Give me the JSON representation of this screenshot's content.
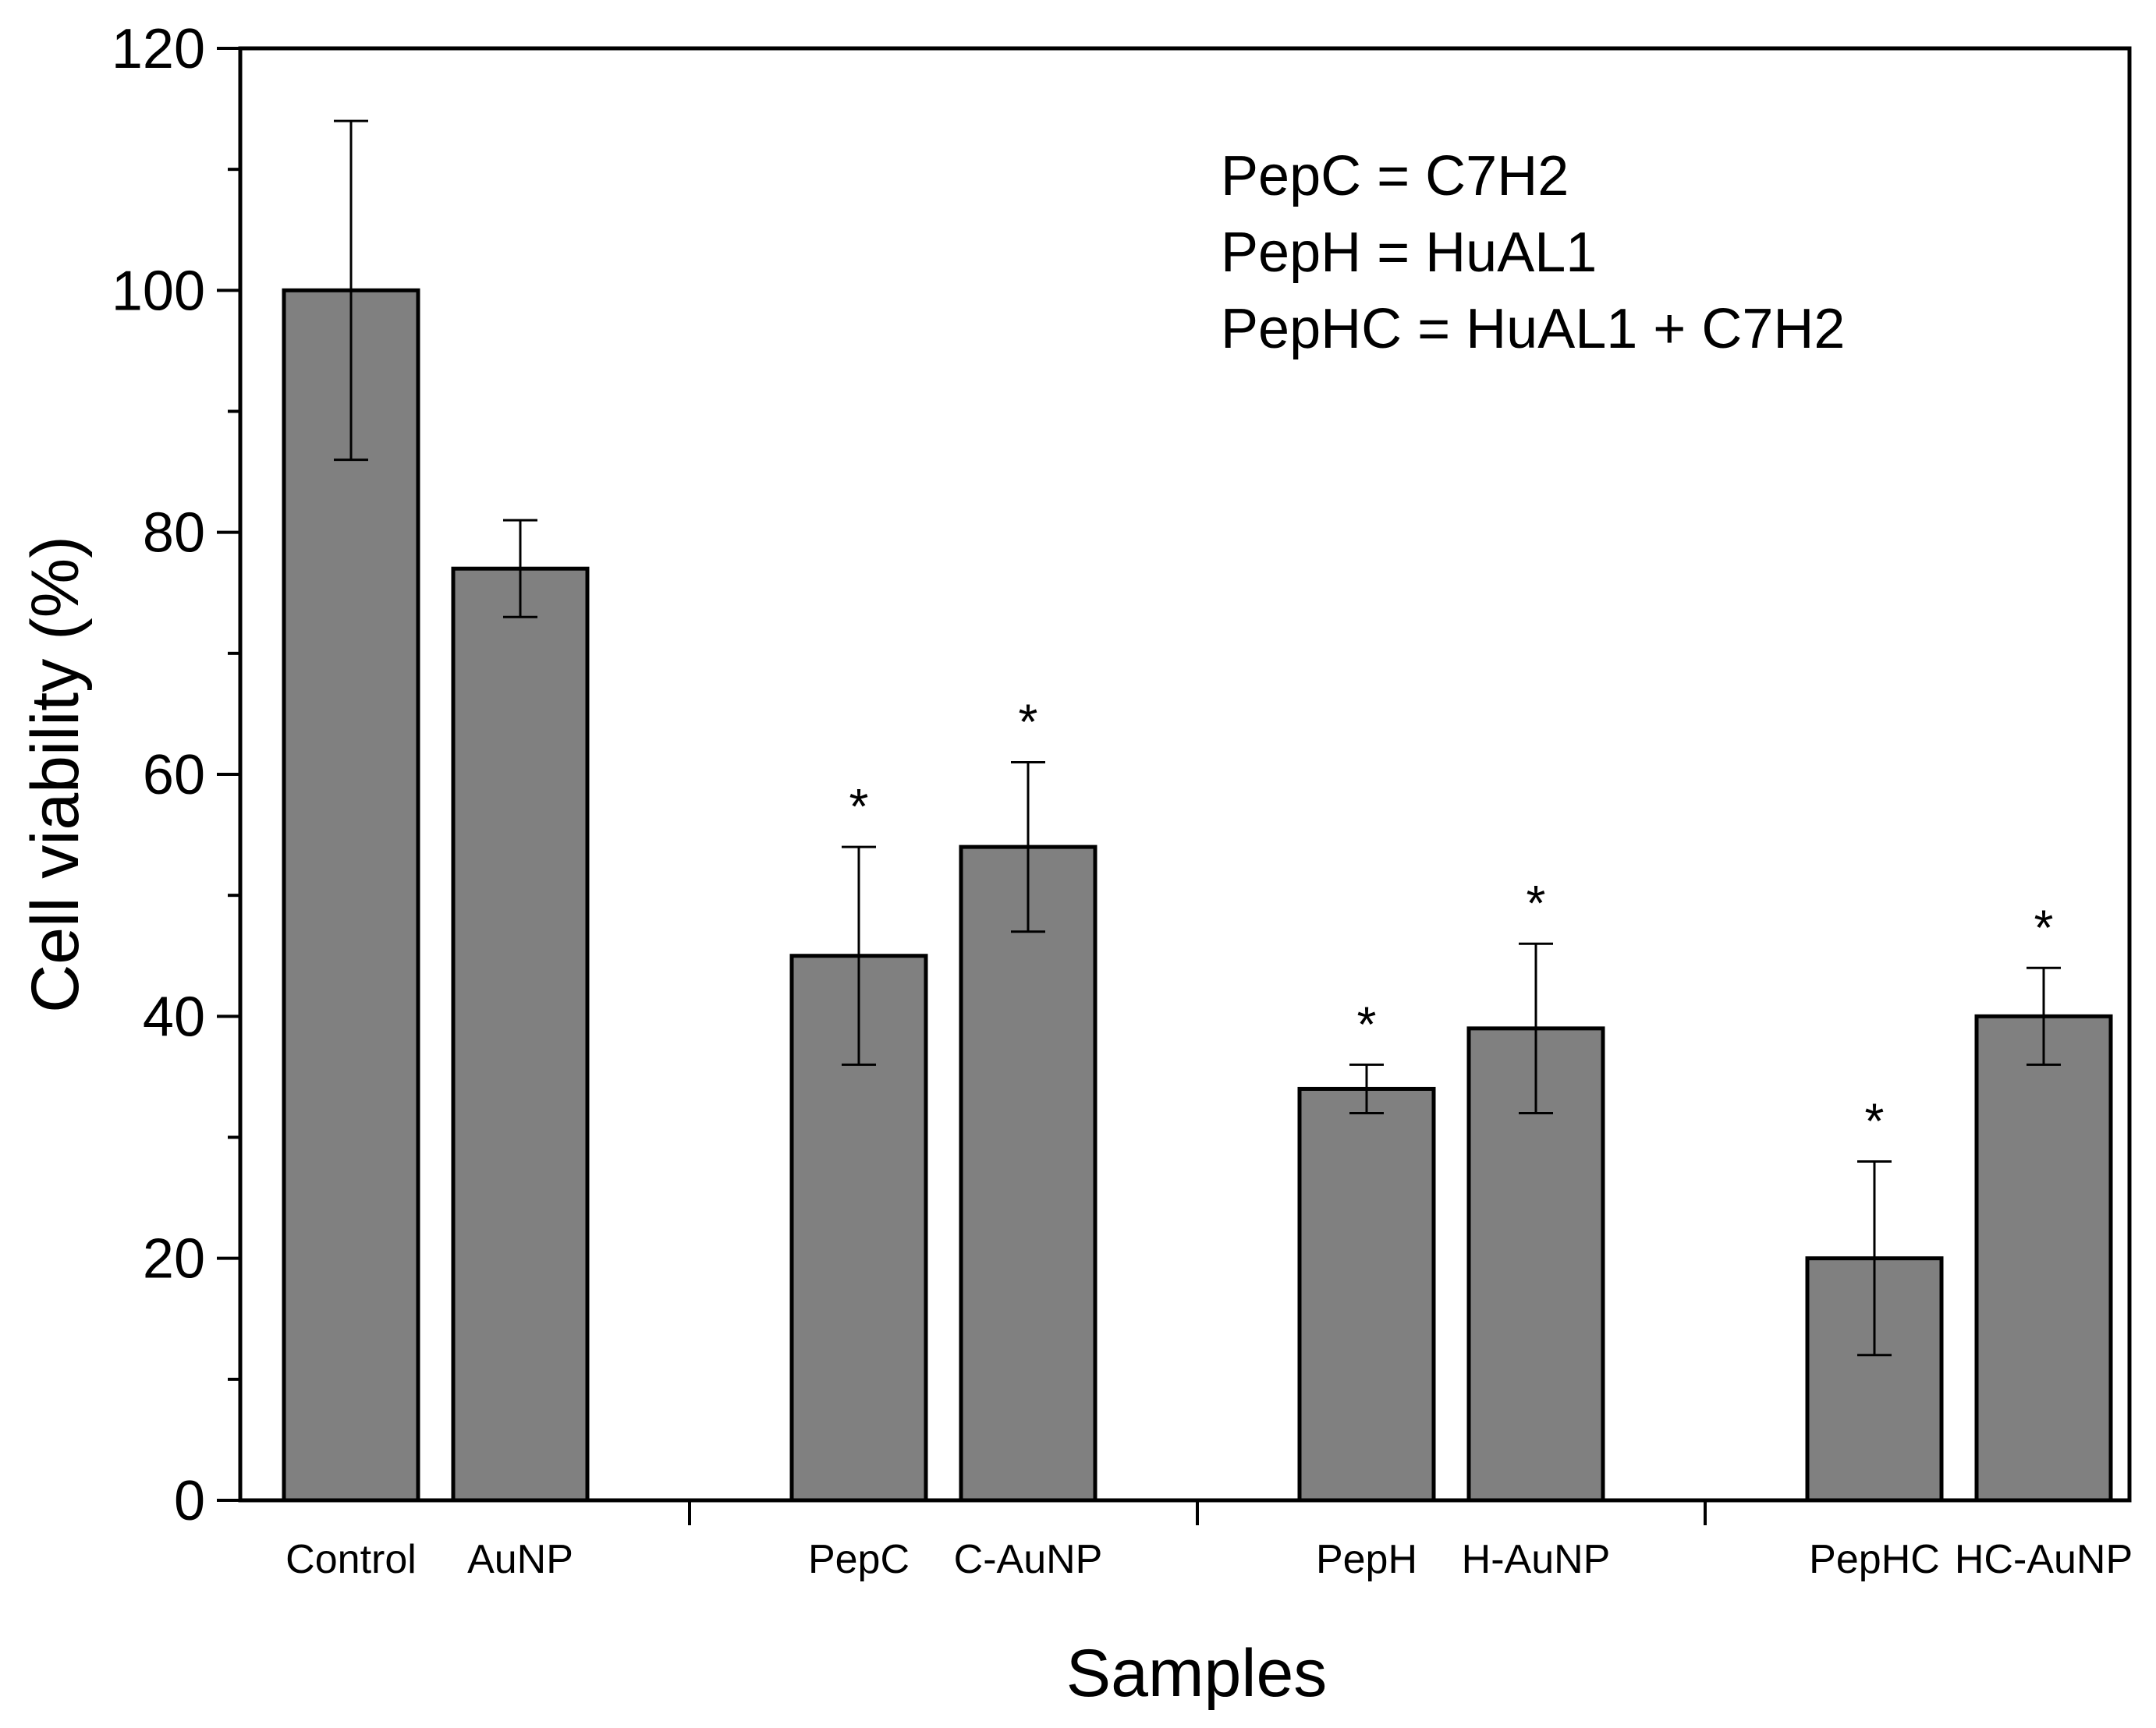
{
  "chart_data": {
    "type": "bar",
    "categories": [
      "Control",
      "AuNP",
      "PepC",
      "C-AuNP",
      "PepH",
      "H-AuNP",
      "PepHC",
      "HC-AuNP"
    ],
    "values": [
      100,
      77,
      45,
      54,
      34,
      39,
      20,
      40
    ],
    "errors": [
      14,
      4,
      9,
      7,
      2,
      7,
      8,
      4
    ],
    "significance": [
      "",
      "",
      "*",
      "*",
      "*",
      "*",
      "*",
      "*"
    ],
    "xlabel": "Samples",
    "ylabel": "Cell viability (%)",
    "ylim": [
      0,
      120
    ],
    "yticks": [
      0,
      20,
      40,
      60,
      80,
      100,
      120
    ],
    "bar_color": "#808080",
    "legend": [
      "PepC = C7H2",
      "PepH = HuAL1",
      "PepHC = HuAL1 + C7H2"
    ],
    "legend_position": "top-right",
    "grid": false
  }
}
